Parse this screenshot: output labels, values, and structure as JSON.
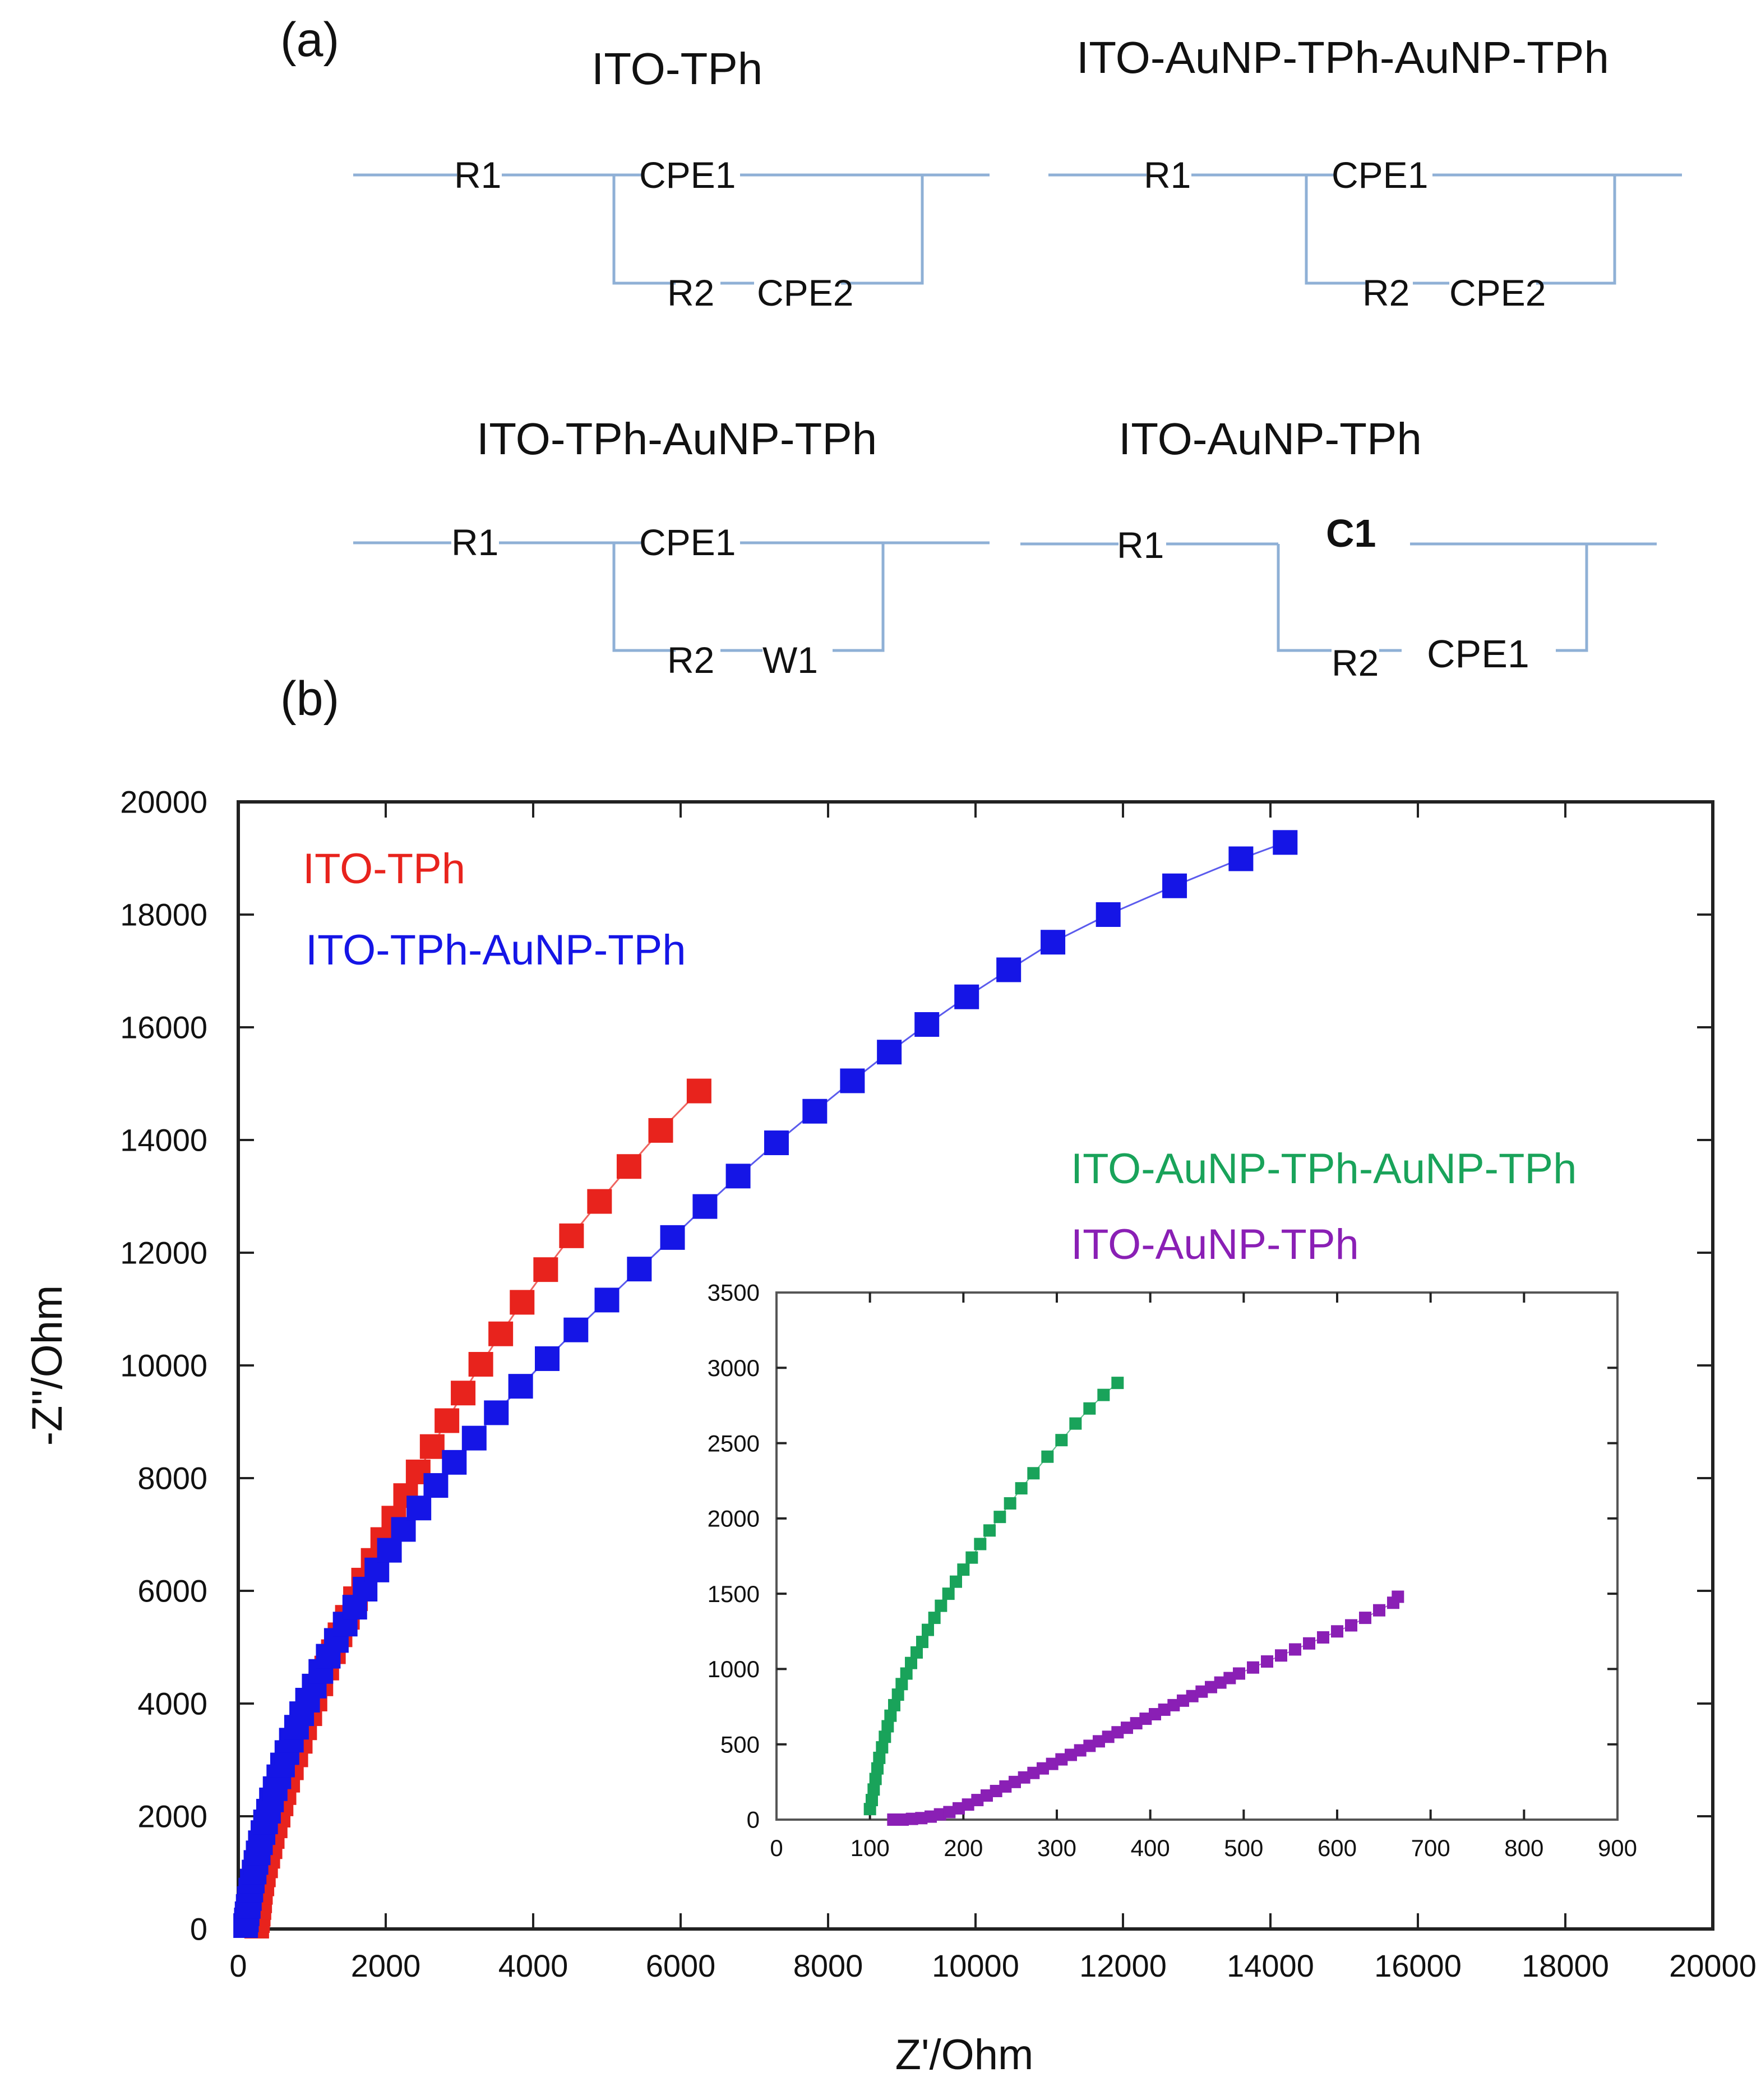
{
  "panel_a": {
    "label": "(a)",
    "circuits": [
      {
        "title": "ITO-TPh",
        "elements": [
          "R1",
          "CPE1",
          "R2",
          "CPE2"
        ],
        "bold": []
      },
      {
        "title": "ITO-AuNP-TPh-AuNP-TPh",
        "elements": [
          "R1",
          "CPE1",
          "R2",
          "CPE2"
        ],
        "bold": []
      },
      {
        "title": "ITO-TPh-AuNP-TPh",
        "elements": [
          "R1",
          "CPE1",
          "R2",
          "W1"
        ],
        "bold": []
      },
      {
        "title": "ITO-AuNP-TPh",
        "elements": [
          "R1",
          "C1",
          "R2",
          "CPE1"
        ],
        "bold": [
          "C1"
        ]
      }
    ]
  },
  "panel_b": {
    "label": "(b)"
  },
  "colors": {
    "red": "#e8231d",
    "blue": "#1515e6",
    "green": "#19a35a",
    "purple": "#8a1fb5",
    "wire": "#8fb0d6"
  },
  "chart_data": [
    {
      "id": "main",
      "type": "scatter",
      "title": "",
      "xlabel": "Z'/Ohm",
      "ylabel": "-Z''/Ohm",
      "xlim": [
        0,
        20000
      ],
      "ylim": [
        0,
        20000
      ],
      "xticks": [
        0,
        2000,
        4000,
        6000,
        8000,
        10000,
        12000,
        14000,
        16000,
        18000,
        20000
      ],
      "yticks": [
        0,
        2000,
        4000,
        6000,
        8000,
        10000,
        12000,
        14000,
        16000,
        18000,
        20000
      ],
      "legend": [
        {
          "text": "ITO-TPh",
          "color": "#e8231d",
          "placement": "top-left"
        },
        {
          "text": "ITO-TPh-AuNP-TPh",
          "color": "#1515e6",
          "placement": "top-left"
        },
        {
          "text": "ITO-AuNP-TPh-AuNP-TPh",
          "color": "#19a35a",
          "placement": "center-right"
        },
        {
          "text": "ITO-AuNP-TPh",
          "color": "#8a1fb5",
          "placement": "center-right"
        }
      ],
      "series": [
        {
          "name": "ITO-TPh",
          "color": "#e8231d",
          "points": [
            [
              250,
              50
            ],
            [
              260,
              150
            ],
            [
              270,
              260
            ],
            [
              280,
              380
            ],
            [
              290,
              500
            ],
            [
              300,
              650
            ],
            [
              320,
              800
            ],
            [
              340,
              960
            ],
            [
              370,
              1120
            ],
            [
              400,
              1290
            ],
            [
              430,
              1460
            ],
            [
              460,
              1640
            ],
            [
              500,
              1830
            ],
            [
              540,
              2020
            ],
            [
              580,
              2220
            ],
            [
              620,
              2420
            ],
            [
              670,
              2640
            ],
            [
              720,
              2860
            ],
            [
              780,
              3090
            ],
            [
              840,
              3330
            ],
            [
              900,
              3570
            ],
            [
              970,
              3820
            ],
            [
              1040,
              4080
            ],
            [
              1120,
              4350
            ],
            [
              1200,
              4630
            ],
            [
              1290,
              4920
            ],
            [
              1380,
              5220
            ],
            [
              1480,
              5530
            ],
            [
              1590,
              5860
            ],
            [
              1700,
              6190
            ],
            [
              1830,
              6540
            ],
            [
              1960,
              6910
            ],
            [
              2110,
              7290
            ],
            [
              2270,
              7690
            ],
            [
              2440,
              8110
            ],
            [
              2630,
              8560
            ],
            [
              2830,
              9020
            ],
            [
              3050,
              9510
            ],
            [
              3290,
              10020
            ],
            [
              3560,
              10560
            ],
            [
              3850,
              11120
            ],
            [
              4170,
              11700
            ],
            [
              4520,
              12300
            ],
            [
              4900,
              12910
            ],
            [
              5300,
              13530
            ],
            [
              5730,
              14170
            ],
            [
              6250,
              14870
            ]
          ]
        },
        {
          "name": "ITO-TPh-AuNP-TPh",
          "color": "#1515e6",
          "points": [
            [
              100,
              60
            ],
            [
              110,
              160
            ],
            [
              120,
              270
            ],
            [
              135,
              400
            ],
            [
              150,
              540
            ],
            [
              170,
              690
            ],
            [
              190,
              850
            ],
            [
              215,
              1010
            ],
            [
              240,
              1180
            ],
            [
              270,
              1350
            ],
            [
              300,
              1530
            ],
            [
              335,
              1710
            ],
            [
              370,
              1900
            ],
            [
              410,
              2090
            ],
            [
              450,
              2290
            ],
            [
              500,
              2490
            ],
            [
              550,
              2700
            ],
            [
              600,
              2910
            ],
            [
              660,
              3130
            ],
            [
              720,
              3350
            ],
            [
              790,
              3580
            ],
            [
              860,
              3820
            ],
            [
              940,
              4060
            ],
            [
              1030,
              4310
            ],
            [
              1120,
              4570
            ],
            [
              1220,
              4840
            ],
            [
              1330,
              5120
            ],
            [
              1450,
              5410
            ],
            [
              1580,
              5710
            ],
            [
              1720,
              6030
            ],
            [
              1880,
              6370
            ],
            [
              2050,
              6720
            ],
            [
              2240,
              7090
            ],
            [
              2450,
              7470
            ],
            [
              2680,
              7870
            ],
            [
              2930,
              8280
            ],
            [
              3200,
              8710
            ],
            [
              3500,
              9160
            ],
            [
              3830,
              9630
            ],
            [
              4190,
              10120
            ],
            [
              4580,
              10630
            ],
            [
              5000,
              11160
            ],
            [
              5440,
              11710
            ],
            [
              5890,
              12270
            ],
            [
              6330,
              12820
            ],
            [
              6780,
              13360
            ],
            [
              7300,
              13950
            ],
            [
              7820,
              14510
            ],
            [
              8330,
              15050
            ],
            [
              8830,
              15560
            ],
            [
              9340,
              16050
            ],
            [
              9880,
              16540
            ],
            [
              10450,
              17020
            ],
            [
              11050,
              17510
            ],
            [
              11800,
              18000
            ],
            [
              12700,
              18510
            ],
            [
              13600,
              18990
            ],
            [
              14200,
              19280
            ]
          ]
        }
      ]
    },
    {
      "id": "inset",
      "type": "scatter",
      "title": "",
      "xlabel": "",
      "ylabel": "",
      "xlim": [
        0,
        900
      ],
      "ylim": [
        0,
        3500
      ],
      "xticks": [
        0,
        100,
        200,
        300,
        400,
        500,
        600,
        700,
        800,
        900
      ],
      "yticks": [
        0,
        500,
        1000,
        1500,
        2000,
        2500,
        3000,
        3500
      ],
      "series": [
        {
          "name": "ITO-AuNP-TPh-AuNP-TPh",
          "color": "#19a35a",
          "points": [
            [
              100,
              70
            ],
            [
              102,
              130
            ],
            [
              104,
              200
            ],
            [
              106,
              270
            ],
            [
              108,
              340
            ],
            [
              110,
              410
            ],
            [
              113,
              480
            ],
            [
              116,
              550
            ],
            [
              119,
              620
            ],
            [
              122,
              690
            ],
            [
              126,
              760
            ],
            [
              130,
              830
            ],
            [
              134,
              900
            ],
            [
              139,
              970
            ],
            [
              144,
              1040
            ],
            [
              150,
              1110
            ],
            [
              156,
              1180
            ],
            [
              162,
              1260
            ],
            [
              169,
              1340
            ],
            [
              176,
              1420
            ],
            [
              184,
              1500
            ],
            [
              192,
              1580
            ],
            [
              200,
              1660
            ],
            [
              209,
              1740
            ],
            [
              218,
              1830
            ],
            [
              228,
              1920
            ],
            [
              239,
              2010
            ],
            [
              250,
              2100
            ],
            [
              262,
              2200
            ],
            [
              275,
              2300
            ],
            [
              290,
              2410
            ],
            [
              305,
              2520
            ],
            [
              320,
              2630
            ],
            [
              335,
              2730
            ],
            [
              350,
              2820
            ],
            [
              365,
              2900
            ]
          ]
        },
        {
          "name": "ITO-AuNP-TPh",
          "color": "#8a1fb5",
          "points": [
            [
              125,
              0
            ],
            [
              135,
              0
            ],
            [
              145,
              5
            ],
            [
              155,
              10
            ],
            [
              165,
              20
            ],
            [
              175,
              35
            ],
            [
              185,
              50
            ],
            [
              195,
              75
            ],
            [
              205,
              100
            ],
            [
              215,
              130
            ],
            [
              225,
              160
            ],
            [
              235,
              190
            ],
            [
              245,
              220
            ],
            [
              255,
              250
            ],
            [
              265,
              280
            ],
            [
              275,
              310
            ],
            [
              285,
              340
            ],
            [
              295,
              370
            ],
            [
              305,
              400
            ],
            [
              315,
              430
            ],
            [
              325,
              460
            ],
            [
              335,
              490
            ],
            [
              345,
              520
            ],
            [
              355,
              550
            ],
            [
              365,
              580
            ],
            [
              375,
              610
            ],
            [
              385,
              640
            ],
            [
              395,
              670
            ],
            [
              405,
              700
            ],
            [
              415,
              730
            ],
            [
              425,
              760
            ],
            [
              435,
              790
            ],
            [
              445,
              820
            ],
            [
              455,
              850
            ],
            [
              465,
              880
            ],
            [
              475,
              910
            ],
            [
              485,
              940
            ],
            [
              495,
              970
            ],
            [
              510,
              1010
            ],
            [
              525,
              1050
            ],
            [
              540,
              1090
            ],
            [
              555,
              1130
            ],
            [
              570,
              1170
            ],
            [
              585,
              1210
            ],
            [
              600,
              1250
            ],
            [
              615,
              1290
            ],
            [
              630,
              1340
            ],
            [
              645,
              1390
            ],
            [
              660,
              1440
            ],
            [
              665,
              1480
            ]
          ]
        }
      ]
    }
  ]
}
